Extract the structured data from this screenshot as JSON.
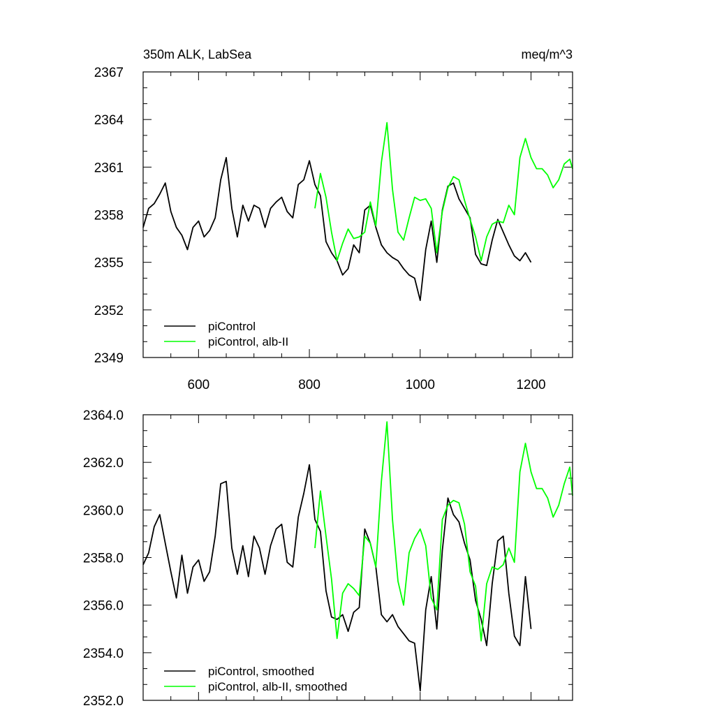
{
  "chart_data": [
    {
      "type": "line",
      "title": "350m ALK, LabSea",
      "units": "meq/m^3",
      "xlim": [
        500,
        1275
      ],
      "ylim": [
        2349,
        2367
      ],
      "xticks": [
        600,
        800,
        1000,
        1200
      ],
      "yticks": [
        2349,
        2352,
        2355,
        2358,
        2361,
        2364,
        2367
      ],
      "ytick_labels": [
        "2349",
        "2352",
        "2355",
        "2358",
        "2361",
        "2364",
        "2367"
      ],
      "legend_position": "lower-left",
      "series": [
        {
          "name": "piControl",
          "color": "#000000",
          "x": [
            500,
            510,
            520,
            530,
            540,
            550,
            560,
            570,
            580,
            590,
            600,
            610,
            620,
            630,
            640,
            650,
            660,
            670,
            680,
            690,
            700,
            710,
            720,
            730,
            740,
            750,
            760,
            770,
            780,
            790,
            800,
            810,
            820,
            830,
            840,
            850,
            860,
            870,
            880,
            890,
            900,
            910,
            920,
            930,
            940,
            950,
            960,
            970,
            980,
            990,
            1000,
            1010,
            1020,
            1030,
            1040,
            1050,
            1060,
            1070,
            1080,
            1090,
            1100,
            1110,
            1120,
            1130,
            1140,
            1150,
            1160,
            1170,
            1180,
            1190,
            1200
          ],
          "y": [
            2357.2,
            2358.4,
            2358.7,
            2359.3,
            2360.0,
            2358.2,
            2357.2,
            2356.7,
            2355.8,
            2357.2,
            2357.6,
            2356.6,
            2357.0,
            2357.8,
            2360.2,
            2361.6,
            2358.4,
            2356.6,
            2358.6,
            2357.6,
            2358.6,
            2358.4,
            2357.2,
            2358.4,
            2358.8,
            2359.1,
            2358.2,
            2357.8,
            2359.9,
            2360.2,
            2361.4,
            2359.9,
            2359.2,
            2356.3,
            2355.6,
            2355.1,
            2354.2,
            2354.6,
            2356.1,
            2355.6,
            2358.3,
            2358.6,
            2357.2,
            2356.1,
            2355.6,
            2355.3,
            2355.1,
            2354.6,
            2354.2,
            2354.0,
            2352.6,
            2355.8,
            2357.6,
            2355.0,
            2358.3,
            2359.8,
            2360.0,
            2359.0,
            2358.4,
            2357.8,
            2355.5,
            2354.9,
            2354.8,
            2356.4,
            2357.7,
            2356.9,
            2356.1,
            2355.4,
            2355.1,
            2355.6,
            2355.0
          ]
        },
        {
          "name": "piControl, alb-II",
          "color": "#00ff00",
          "x": [
            810,
            820,
            830,
            840,
            850,
            860,
            870,
            880,
            890,
            900,
            910,
            920,
            930,
            940,
            950,
            960,
            970,
            980,
            990,
            1000,
            1010,
            1020,
            1030,
            1040,
            1050,
            1060,
            1070,
            1080,
            1090,
            1100,
            1110,
            1120,
            1130,
            1140,
            1150,
            1160,
            1170,
            1180,
            1190,
            1200,
            1210,
            1220,
            1230,
            1240,
            1250,
            1260,
            1270,
            1275
          ],
          "y": [
            2358.4,
            2360.6,
            2359.1,
            2356.9,
            2355.1,
            2356.2,
            2357.1,
            2356.5,
            2356.6,
            2356.9,
            2358.8,
            2357.3,
            2361.3,
            2363.8,
            2359.6,
            2356.9,
            2356.4,
            2357.8,
            2359.1,
            2358.9,
            2359.0,
            2358.4,
            2355.6,
            2358.2,
            2359.7,
            2360.4,
            2360.2,
            2358.9,
            2357.7,
            2356.6,
            2355.1,
            2356.6,
            2357.4,
            2357.6,
            2357.5,
            2358.6,
            2358.0,
            2361.6,
            2362.8,
            2361.6,
            2360.9,
            2360.9,
            2360.5,
            2359.7,
            2360.2,
            2361.2,
            2361.5,
            2360.9
          ]
        }
      ]
    },
    {
      "type": "line",
      "xlim": [
        500,
        1275
      ],
      "ylim": [
        2352,
        2364
      ],
      "xticks": [
        600,
        800,
        1000,
        1200
      ],
      "yticks": [
        2352,
        2354,
        2356,
        2358,
        2360,
        2362,
        2364
      ],
      "ytick_labels": [
        "2352.0",
        "2354.0",
        "2356.0",
        "2358.0",
        "2360.0",
        "2362.0",
        "2364.0"
      ],
      "legend_position": "lower-left",
      "series": [
        {
          "name": "piControl, smoothed",
          "color": "#000000",
          "x": [
            500,
            510,
            520,
            530,
            540,
            550,
            560,
            570,
            580,
            590,
            600,
            610,
            620,
            630,
            640,
            650,
            660,
            670,
            680,
            690,
            700,
            710,
            720,
            730,
            740,
            750,
            760,
            770,
            780,
            790,
            800,
            810,
            820,
            830,
            840,
            850,
            860,
            870,
            880,
            890,
            900,
            910,
            920,
            930,
            940,
            950,
            960,
            970,
            980,
            990,
            1000,
            1010,
            1020,
            1030,
            1040,
            1050,
            1060,
            1070,
            1080,
            1090,
            1100,
            1110,
            1120,
            1130,
            1140,
            1150,
            1160,
            1170,
            1180,
            1190,
            1200
          ],
          "y": [
            2357.7,
            2358.2,
            2359.3,
            2359.8,
            2358.6,
            2357.4,
            2356.3,
            2358.1,
            2356.5,
            2357.6,
            2357.9,
            2357.0,
            2357.4,
            2358.9,
            2361.1,
            2361.2,
            2358.4,
            2357.3,
            2358.5,
            2357.2,
            2358.9,
            2358.4,
            2357.3,
            2358.5,
            2359.2,
            2359.4,
            2357.8,
            2357.6,
            2359.7,
            2360.7,
            2361.9,
            2359.6,
            2359.1,
            2356.6,
            2355.5,
            2355.4,
            2355.6,
            2354.9,
            2355.7,
            2355.9,
            2359.2,
            2358.6,
            2357.6,
            2355.6,
            2355.3,
            2355.6,
            2355.1,
            2354.8,
            2354.5,
            2354.4,
            2352.4,
            2355.8,
            2357.2,
            2355.0,
            2358.3,
            2360.5,
            2359.8,
            2359.5,
            2358.6,
            2357.9,
            2356.2,
            2355.4,
            2354.3,
            2356.9,
            2358.7,
            2358.9,
            2356.5,
            2354.7,
            2354.3,
            2357.2,
            2355.0
          ]
        },
        {
          "name": "piControl, alb-II, smoothed",
          "color": "#00ff00",
          "x": [
            810,
            820,
            830,
            840,
            850,
            860,
            870,
            880,
            890,
            900,
            910,
            920,
            930,
            940,
            950,
            960,
            970,
            980,
            990,
            1000,
            1010,
            1020,
            1030,
            1040,
            1050,
            1060,
            1070,
            1080,
            1090,
            1100,
            1110,
            1120,
            1130,
            1140,
            1150,
            1160,
            1170,
            1180,
            1190,
            1200,
            1210,
            1220,
            1230,
            1240,
            1250,
            1260,
            1270,
            1275
          ],
          "y": [
            2358.4,
            2360.8,
            2358.9,
            2357.1,
            2354.6,
            2356.5,
            2356.9,
            2356.7,
            2356.4,
            2358.9,
            2358.6,
            2357.6,
            2361.2,
            2363.7,
            2359.6,
            2357.0,
            2356.0,
            2358.2,
            2358.8,
            2359.2,
            2358.5,
            2356.3,
            2355.8,
            2359.6,
            2360.2,
            2360.4,
            2360.3,
            2359.4,
            2357.4,
            2356.8,
            2354.5,
            2356.9,
            2357.6,
            2357.5,
            2357.7,
            2358.4,
            2357.8,
            2361.6,
            2362.8,
            2361.6,
            2360.9,
            2360.9,
            2360.5,
            2359.7,
            2360.2,
            2361.1,
            2361.8,
            2360.6
          ]
        }
      ]
    }
  ]
}
